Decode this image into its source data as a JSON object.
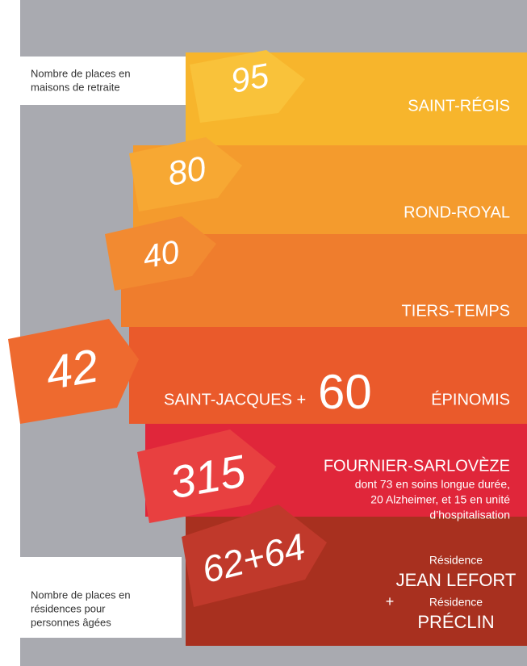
{
  "legend_top": [
    "Nombre de places en",
    "maisons de retraite"
  ],
  "rows": [
    {
      "number": "95",
      "name": "SAINT-RÉGIS"
    },
    {
      "number": "80",
      "name": "ROND-ROYAL"
    },
    {
      "number": "40",
      "name": "TIERS-TEMPS"
    },
    {
      "number": "42",
      "name": "SAINT-JACQUES +",
      "number2": "60",
      "name2": "ÉPINOMIS"
    },
    {
      "number": "315",
      "name": "FOURNIER-SARLOVÈZE",
      "details": [
        "dont 73 en soins longue durée,",
        "20 Alzheimer, et 15 en unité",
        "d’hospitalisation"
      ]
    },
    {
      "number": "62+64",
      "residence1_label": "Résidence",
      "residence1": "JEAN LEFORT",
      "plus": "+",
      "residence2_label": "Résidence",
      "residence2": "PRÉCLIN"
    }
  ],
  "legend_bottom": [
    "Nombre de places en",
    "résidences pour",
    "personnes âgées"
  ]
}
